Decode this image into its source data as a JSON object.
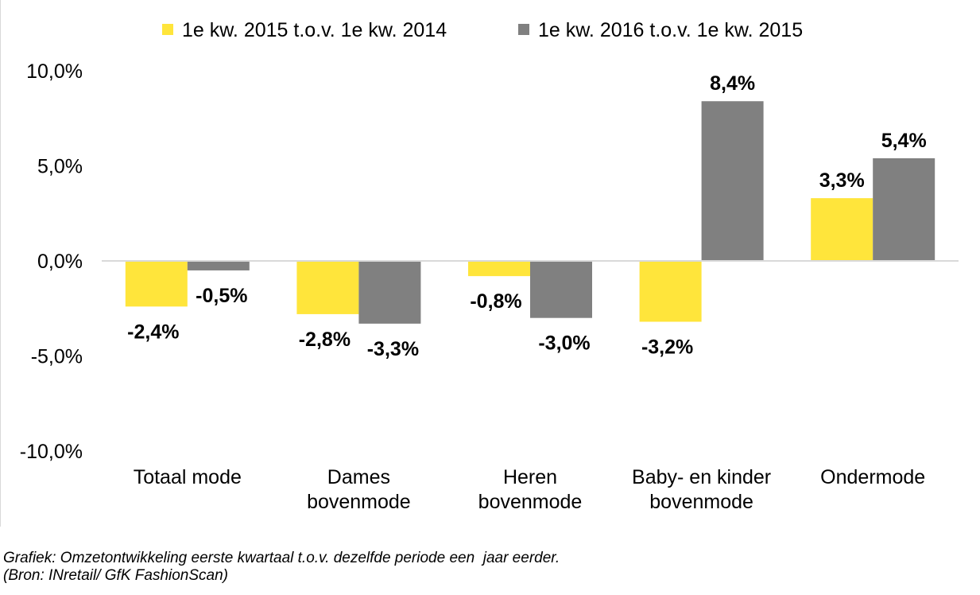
{
  "chart_data": {
    "type": "bar",
    "categories": [
      [
        "Totaal mode"
      ],
      [
        "Dames",
        "bovenmode"
      ],
      [
        "Heren",
        "bovenmode"
      ],
      [
        "Baby- en kinder",
        "bovenmode"
      ],
      [
        "Ondermode"
      ]
    ],
    "series": [
      {
        "name": "1e kw. 2015 t.o.v. 1e kw. 2014",
        "color": "#ffe53b",
        "values": [
          -2.4,
          -2.8,
          -0.8,
          -3.2,
          3.3
        ],
        "labels": [
          "-2,4%",
          "-2,8%",
          "-0,8%",
          "-3,2%",
          "3,3%"
        ]
      },
      {
        "name": "1e kw. 2016 t.o.v. 1e kw. 2015",
        "color": "#808080",
        "values": [
          -0.5,
          -3.3,
          -3.0,
          8.4,
          5.4
        ],
        "labels": [
          "-0,5%",
          "-3,3%",
          "-3,0%",
          "8,4%",
          "5,4%"
        ]
      }
    ],
    "yticks": [
      10,
      5,
      0,
      -5,
      -10
    ],
    "ytick_labels": [
      "10,0%",
      "5,0%",
      "0,0%",
      "-5,0%",
      "-10,0%"
    ],
    "ylim": [
      -10,
      10
    ],
    "legend_position": "top",
    "grid": false
  },
  "caption": {
    "line1": "Grafiek: Omzetontwikkeling eerste kwartaal t.o.v. dezelfde periode een  jaar eerder.",
    "line2": "(Bron: INretail/ GfK FashionScan)"
  }
}
